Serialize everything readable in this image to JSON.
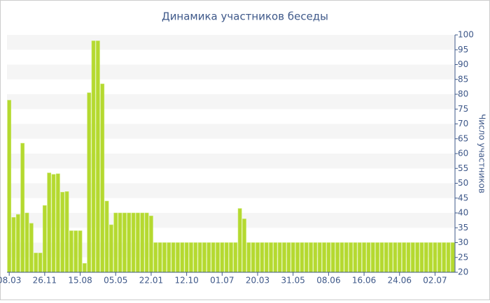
{
  "chart_data": {
    "type": "bar",
    "title": "Динамика участников беседы",
    "y_label": "Число участников",
    "categories": [
      "08.03",
      null,
      null,
      null,
      null,
      null,
      null,
      null,
      "26.11",
      null,
      null,
      null,
      null,
      null,
      null,
      null,
      "15.08",
      null,
      null,
      null,
      null,
      null,
      null,
      null,
      "05.05",
      null,
      null,
      null,
      null,
      null,
      null,
      null,
      "22.01",
      null,
      null,
      null,
      null,
      null,
      null,
      null,
      "12.10",
      null,
      null,
      null,
      null,
      null,
      null,
      null,
      "01.07",
      null,
      null,
      null,
      null,
      null,
      null,
      null,
      "20.03",
      null,
      null,
      null,
      null,
      null,
      null,
      null,
      "31.05",
      null,
      null,
      null,
      null,
      null,
      null,
      null,
      "08.06",
      null,
      null,
      null,
      null,
      null,
      null,
      null,
      "16.06",
      null,
      null,
      null,
      null,
      null,
      null,
      null,
      "24.06",
      null,
      null,
      null,
      null,
      null,
      null,
      null,
      "02.07",
      null,
      null,
      null,
      null
    ],
    "values": [
      78,
      38.5,
      39.5,
      63.5,
      40,
      36.5,
      26.5,
      26.5,
      42.5,
      53.5,
      53,
      53.2,
      47,
      47.2,
      34,
      34,
      34,
      23,
      80.5,
      98,
      98,
      83.5,
      44,
      36,
      40,
      40,
      40,
      40,
      40,
      40,
      40,
      40,
      39,
      30,
      30,
      30,
      30,
      30,
      30,
      30,
      30,
      30,
      30,
      30,
      30,
      30,
      30,
      30,
      30,
      30,
      30,
      30,
      41.5,
      38,
      30,
      30,
      30,
      30,
      30,
      30,
      30,
      30,
      30,
      30,
      30,
      30,
      30,
      30,
      30,
      30,
      30,
      30,
      30,
      30,
      30,
      30,
      30,
      30,
      30,
      30,
      30,
      30,
      30,
      30,
      30,
      30,
      30,
      30,
      30,
      30,
      30,
      30,
      30,
      30,
      30,
      30,
      30,
      30,
      30,
      30,
      30
    ],
    "color": "#b5d930",
    "ylim": [
      20,
      100
    ],
    "yticks": [
      20,
      25,
      30,
      35,
      40,
      45,
      50,
      55,
      60,
      65,
      70,
      75,
      80,
      85,
      90,
      95,
      100
    ],
    "grid_bands": true
  }
}
